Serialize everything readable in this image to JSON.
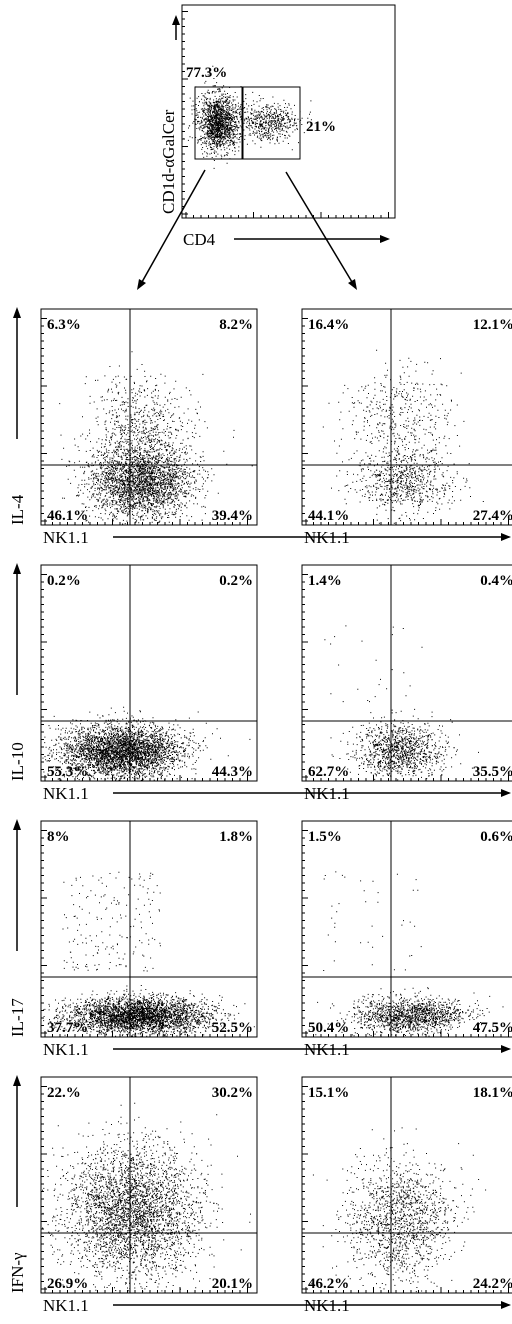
{
  "chart_data": [
    {
      "type": "scatter",
      "xlabel": "CD4",
      "ylabel": "CD1d-αGalCer",
      "gates": [
        {
          "label": "77.3%",
          "percent": 77.3
        },
        {
          "label": "21%",
          "percent": 21
        }
      ]
    },
    {
      "type": "scatter",
      "xlabel": "NK1.1",
      "ylabel": "IL-4",
      "quadrants": [
        {
          "label": "6.3%",
          "percent": 6.3
        },
        {
          "label": "8.2%",
          "percent": 8.2
        },
        {
          "label": "46.1%",
          "percent": 46.1
        },
        {
          "label": "39.4%",
          "percent": 39.4
        }
      ]
    },
    {
      "type": "scatter",
      "xlabel": "NK1.1",
      "ylabel": "IL-4",
      "quadrants": [
        {
          "label": "16.4%",
          "percent": 16.4
        },
        {
          "label": "12.1%",
          "percent": 12.1
        },
        {
          "label": "44.1%",
          "percent": 44.1
        },
        {
          "label": "27.4%",
          "percent": 27.4
        }
      ]
    },
    {
      "type": "scatter",
      "xlabel": "NK1.1",
      "ylabel": "IL-10",
      "quadrants": [
        {
          "label": "0.2%",
          "percent": 0.2
        },
        {
          "label": "0.2%",
          "percent": 0.2
        },
        {
          "label": "55.3%",
          "percent": 55.3
        },
        {
          "label": "44.3%",
          "percent": 44.3
        }
      ]
    },
    {
      "type": "scatter",
      "xlabel": "NK1.1",
      "ylabel": "IL-10",
      "quadrants": [
        {
          "label": "1.4%",
          "percent": 1.4
        },
        {
          "label": "0.4%",
          "percent": 0.4
        },
        {
          "label": "62.7%",
          "percent": 62.7
        },
        {
          "label": "35.5%",
          "percent": 35.5
        }
      ]
    },
    {
      "type": "scatter",
      "xlabel": "NK1.1",
      "ylabel": "IL-17",
      "quadrants": [
        {
          "label": "8%",
          "percent": 8
        },
        {
          "label": "1.8%",
          "percent": 1.8
        },
        {
          "label": "37.7%",
          "percent": 37.7
        },
        {
          "label": "52.5%",
          "percent": 52.5
        }
      ]
    },
    {
      "type": "scatter",
      "xlabel": "NK1.1",
      "ylabel": "IL-17",
      "quadrants": [
        {
          "label": "1.5%",
          "percent": 1.5
        },
        {
          "label": "0.6%",
          "percent": 0.6
        },
        {
          "label": "50.4%",
          "percent": 50.4
        },
        {
          "label": "47.5%",
          "percent": 47.5
        }
      ]
    },
    {
      "type": "scatter",
      "xlabel": "NK1.1",
      "ylabel": "IFN-γ",
      "quadrants": [
        {
          "label": "22.%",
          "percent": 22
        },
        {
          "label": "30.2%",
          "percent": 30.2
        },
        {
          "label": "26.9%",
          "percent": 26.9
        },
        {
          "label": "20.1%",
          "percent": 20.1
        }
      ]
    },
    {
      "type": "scatter",
      "xlabel": "NK1.1",
      "ylabel": "IFN-γ",
      "quadrants": [
        {
          "label": "15.1%",
          "percent": 15.1
        },
        {
          "label": "18.1%",
          "percent": 18.1
        },
        {
          "label": "46.2%",
          "percent": 46.2
        },
        {
          "label": "24.2%",
          "percent": 24.2
        }
      ]
    }
  ]
}
